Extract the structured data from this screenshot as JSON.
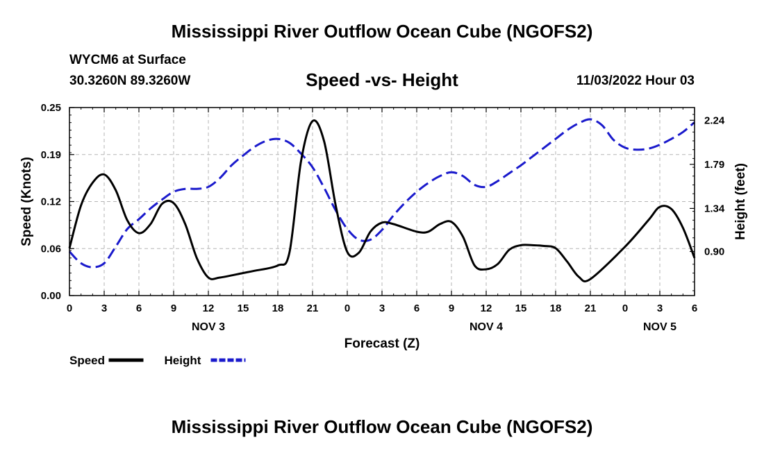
{
  "header": {
    "main_title": "Mississippi River Outflow Ocean Cube (NGOFS2)",
    "station": "WYCM6 at Surface",
    "coords": "30.3260N  89.3260W",
    "subtitle": "Speed -vs- Height",
    "timestamp": "11/03/2022 Hour 03"
  },
  "footer": {
    "title": "Mississippi River Outflow Ocean Cube (NGOFS2)"
  },
  "chart_data": {
    "type": "line",
    "title": "Speed -vs- Height",
    "xlabel": "Forecast (Z)",
    "ylabel_left": "Speed (Knots)",
    "ylabel_right": "Height (feet)",
    "grid": true,
    "x_range_hours": [
      0,
      54
    ],
    "x_ticks": [
      {
        "hour": 0,
        "label": "0"
      },
      {
        "hour": 3,
        "label": "3"
      },
      {
        "hour": 6,
        "label": "6"
      },
      {
        "hour": 9,
        "label": "9"
      },
      {
        "hour": 12,
        "label": "12"
      },
      {
        "hour": 15,
        "label": "15"
      },
      {
        "hour": 18,
        "label": "18"
      },
      {
        "hour": 21,
        "label": "21"
      },
      {
        "hour": 24,
        "label": "0"
      },
      {
        "hour": 27,
        "label": "3"
      },
      {
        "hour": 30,
        "label": "6"
      },
      {
        "hour": 33,
        "label": "9"
      },
      {
        "hour": 36,
        "label": "12"
      },
      {
        "hour": 39,
        "label": "15"
      },
      {
        "hour": 42,
        "label": "18"
      },
      {
        "hour": 45,
        "label": "21"
      },
      {
        "hour": 48,
        "label": "0"
      },
      {
        "hour": 51,
        "label": "3"
      },
      {
        "hour": 54,
        "label": "6"
      }
    ],
    "day_labels": [
      {
        "hour": 12,
        "label": "NOV 3"
      },
      {
        "hour": 36,
        "label": "NOV 4"
      },
      {
        "hour": 51,
        "label": "NOV 5"
      }
    ],
    "y_left": {
      "range": [
        0,
        0.25
      ],
      "ticks": [
        {
          "value": 0.0,
          "label": "0.00"
        },
        {
          "value": 0.0625,
          "label": "0.06"
        },
        {
          "value": 0.125,
          "label": "0.12"
        },
        {
          "value": 0.1875,
          "label": "0.19"
        },
        {
          "value": 0.25,
          "label": "0.25"
        }
      ]
    },
    "y_right": {
      "range": [
        0.45,
        2.37
      ],
      "ticks": [
        {
          "value": 0.9,
          "label": "0.90"
        },
        {
          "value": 1.34,
          "label": "1.34"
        },
        {
          "value": 1.79,
          "label": "1.79"
        },
        {
          "value": 2.24,
          "label": "2.24"
        }
      ]
    },
    "series": [
      {
        "name": "Speed",
        "axis": "left",
        "color": "#000000",
        "dash": false,
        "points": [
          [
            0,
            0.063
          ],
          [
            1,
            0.12
          ],
          [
            2,
            0.15
          ],
          [
            3,
            0.161
          ],
          [
            4,
            0.14
          ],
          [
            5,
            0.1
          ],
          [
            6,
            0.083
          ],
          [
            7,
            0.095
          ],
          [
            8,
            0.122
          ],
          [
            9,
            0.123
          ],
          [
            10,
            0.095
          ],
          [
            11,
            0.05
          ],
          [
            12,
            0.024
          ],
          [
            13,
            0.024
          ],
          [
            15,
            0.03
          ],
          [
            16,
            0.033
          ],
          [
            18,
            0.04
          ],
          [
            19,
            0.057
          ],
          [
            20,
            0.178
          ],
          [
            21,
            0.232
          ],
          [
            22,
            0.205
          ],
          [
            23,
            0.12
          ],
          [
            24,
            0.058
          ],
          [
            25,
            0.057
          ],
          [
            26,
            0.085
          ],
          [
            27,
            0.097
          ],
          [
            28,
            0.095
          ],
          [
            30,
            0.085
          ],
          [
            31,
            0.085
          ],
          [
            32,
            0.095
          ],
          [
            33,
            0.098
          ],
          [
            34,
            0.078
          ],
          [
            35,
            0.04
          ],
          [
            36,
            0.035
          ],
          [
            37,
            0.042
          ],
          [
            38,
            0.061
          ],
          [
            39,
            0.067
          ],
          [
            40,
            0.067
          ],
          [
            41,
            0.066
          ],
          [
            42,
            0.063
          ],
          [
            43,
            0.045
          ],
          [
            44,
            0.025
          ],
          [
            45,
            0.022
          ],
          [
            48,
            0.065
          ],
          [
            50,
            0.1
          ],
          [
            51,
            0.118
          ],
          [
            52,
            0.115
          ],
          [
            53,
            0.09
          ],
          [
            54,
            0.05
          ]
        ]
      },
      {
        "name": "Height",
        "axis": "right",
        "color": "#1a1acc",
        "dash": true,
        "points": [
          [
            0,
            0.9
          ],
          [
            1,
            0.78
          ],
          [
            2,
            0.74
          ],
          [
            3,
            0.78
          ],
          [
            4,
            0.95
          ],
          [
            5,
            1.13
          ],
          [
            6,
            1.23
          ],
          [
            7,
            1.34
          ],
          [
            8,
            1.43
          ],
          [
            9,
            1.51
          ],
          [
            10,
            1.54
          ],
          [
            11,
            1.54
          ],
          [
            12,
            1.56
          ],
          [
            13,
            1.65
          ],
          [
            14,
            1.78
          ],
          [
            15,
            1.88
          ],
          [
            16,
            1.97
          ],
          [
            17,
            2.03
          ],
          [
            18,
            2.05
          ],
          [
            19,
            2.01
          ],
          [
            20,
            1.9
          ],
          [
            21,
            1.76
          ],
          [
            22,
            1.55
          ],
          [
            23,
            1.32
          ],
          [
            24,
            1.13
          ],
          [
            25,
            1.02
          ],
          [
            26,
            1.02
          ],
          [
            27,
            1.12
          ],
          [
            28,
            1.27
          ],
          [
            29,
            1.4
          ],
          [
            30,
            1.51
          ],
          [
            31,
            1.6
          ],
          [
            32,
            1.67
          ],
          [
            33,
            1.71
          ],
          [
            34,
            1.67
          ],
          [
            35,
            1.58
          ],
          [
            36,
            1.56
          ],
          [
            37,
            1.62
          ],
          [
            38,
            1.7
          ],
          [
            39,
            1.78
          ],
          [
            40,
            1.87
          ],
          [
            41,
            1.96
          ],
          [
            42,
            2.05
          ],
          [
            43,
            2.14
          ],
          [
            44,
            2.21
          ],
          [
            45,
            2.25
          ],
          [
            46,
            2.19
          ],
          [
            47,
            2.04
          ],
          [
            48,
            1.96
          ],
          [
            49,
            1.94
          ],
          [
            50,
            1.95
          ],
          [
            51,
            1.99
          ],
          [
            52,
            2.05
          ],
          [
            53,
            2.12
          ],
          [
            54,
            2.22
          ]
        ]
      }
    ],
    "legend": [
      {
        "label": "Speed",
        "color": "#000000",
        "dash": false
      },
      {
        "label": "Height",
        "color": "#1a1acc",
        "dash": true
      }
    ]
  }
}
